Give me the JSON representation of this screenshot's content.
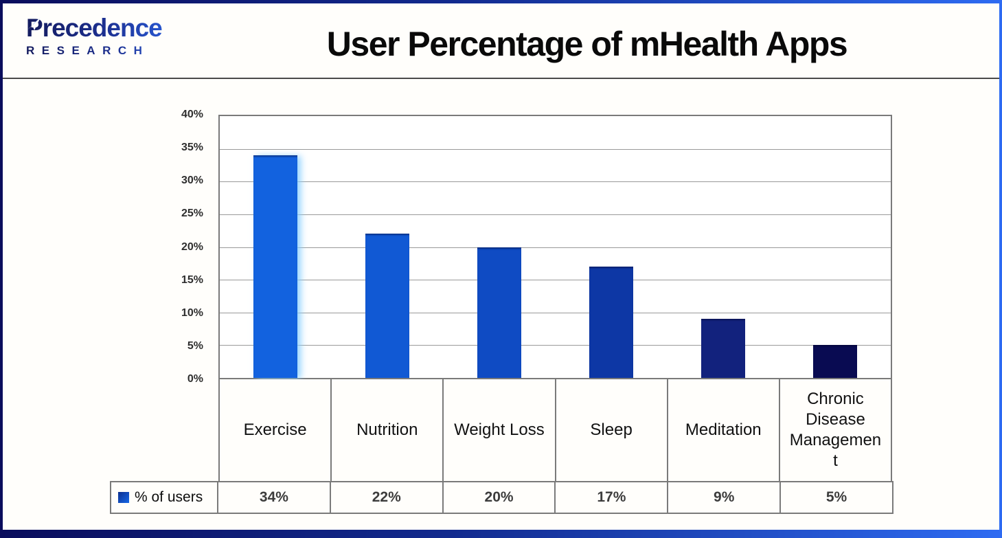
{
  "brand": {
    "name": "Precedence",
    "subname": "RESEARCH",
    "color_dark": "#141B5E",
    "color_bright": "#2E6BF2"
  },
  "header": {
    "title": "User Percentage of mHealth Apps"
  },
  "icons": {
    "logo_icon": "paper-plane-icon",
    "legend_icon": "series-color-swatch"
  },
  "chart_data": {
    "type": "bar",
    "title": "User Percentage of mHealth Apps",
    "categories": [
      "Exercise",
      "Nutrition",
      "Weight Loss",
      "Sleep",
      "Meditation",
      "Chronic Disease Management"
    ],
    "series": [
      {
        "name": "% of users",
        "values": [
          34,
          22,
          20,
          17,
          9,
          5
        ]
      }
    ],
    "value_labels": [
      "34%",
      "22%",
      "20%",
      "17%",
      "9%",
      "5%"
    ],
    "xlabel": "",
    "ylabel": "",
    "ylim": [
      0,
      40
    ],
    "yticks": [
      "0%",
      "5%",
      "10%",
      "15%",
      "20%",
      "25%",
      "30%",
      "35%",
      "40%"
    ],
    "grid": true,
    "legend_position": "bottom-left table cell",
    "bar_colors": [
      "#1262DF",
      "#1159D4",
      "#0F4BC3",
      "#0D37A5",
      "#12227D",
      "#090B52"
    ]
  }
}
